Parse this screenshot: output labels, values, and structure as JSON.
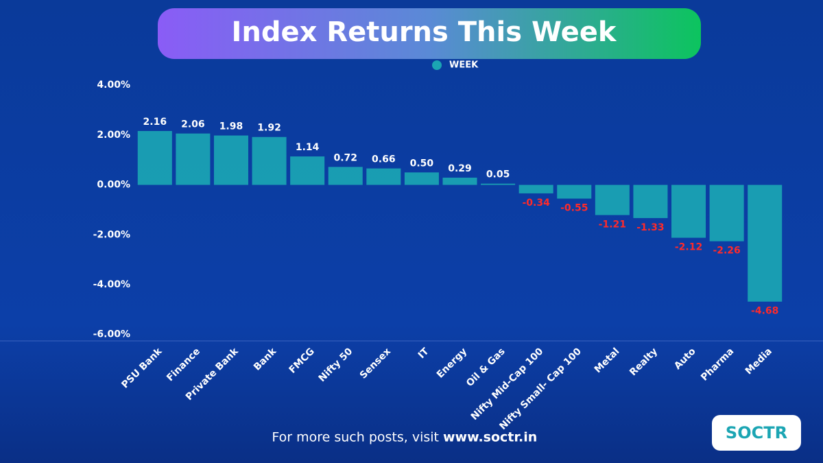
{
  "chart_data": {
    "type": "bar",
    "title": "Index Returns This Week",
    "categories": [
      "PSU Bank",
      "Finance",
      "Private Bank",
      "Bank",
      "FMCG",
      "Nifty 50",
      "Sensex",
      "IT",
      "Energy",
      "Oil & Gas",
      "Nifty Mid-Cap 100",
      "Nifty Small- Cap 100",
      "Metal",
      "Realty",
      "Auto",
      "Pharma",
      "Media"
    ],
    "series": [
      {
        "name": "WEEK",
        "color": "#1ba5b3",
        "values": [
          2.16,
          2.06,
          1.98,
          1.92,
          1.14,
          0.72,
          0.66,
          0.5,
          0.29,
          0.05,
          -0.34,
          -0.55,
          -1.21,
          -1.33,
          -2.12,
          -2.26,
          -4.68
        ],
        "value_labels": [
          "2.16",
          "2.06",
          "1.98",
          "1.92",
          "1.14",
          "0.72",
          "0.66",
          "0.50",
          "0.29",
          "0.05",
          "-0.34",
          "-0.55",
          "-1.21",
          "-1.33",
          "-2.12",
          "-2.26",
          "-4.68"
        ]
      }
    ],
    "ylim": [
      -6.2,
      4.8
    ],
    "yticks": [
      {
        "value": -6,
        "label": "-6.00%"
      },
      {
        "value": -4,
        "label": "-4.00%"
      },
      {
        "value": -2,
        "label": "-2.00%"
      },
      {
        "value": 0,
        "label": "0.00%"
      },
      {
        "value": 2,
        "label": "2.00%"
      },
      {
        "value": 4,
        "label": "4.00%"
      }
    ],
    "grid": false
  },
  "footer": {
    "text": "For more such posts, visit",
    "link": "www.soctr.in"
  },
  "logo": "SOCTR"
}
